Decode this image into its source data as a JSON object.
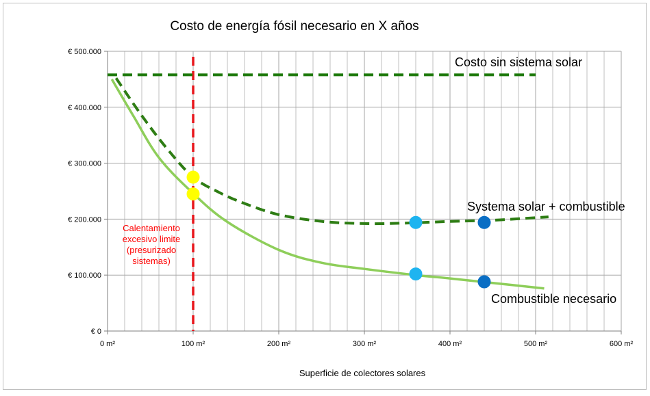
{
  "chart_data": {
    "type": "line",
    "title": "Costo de energía fósil necesario en X años",
    "xlabel": "Superficie de colectores solares",
    "ylabel": "",
    "xlim": [
      0,
      600
    ],
    "ylim": [
      0,
      500000
    ],
    "x_ticks": [
      {
        "value": 0,
        "label": "0 m²"
      },
      {
        "value": 100,
        "label": "100 m²"
      },
      {
        "value": 200,
        "label": "200 m²"
      },
      {
        "value": 300,
        "label": "300 m²"
      },
      {
        "value": 400,
        "label": "400 m²"
      },
      {
        "value": 500,
        "label": "500 m²"
      },
      {
        "value": 600,
        "label": "600 m²"
      }
    ],
    "y_ticks": [
      {
        "value": 0,
        "label": "€ 0"
      },
      {
        "value": 100000,
        "label": "€ 100.000"
      },
      {
        "value": 200000,
        "label": "€ 200.000"
      },
      {
        "value": 300000,
        "label": "€ 300.000"
      },
      {
        "value": 400000,
        "label": "€ 400.000"
      },
      {
        "value": 500000,
        "label": "€ 500.000"
      }
    ],
    "grid": true,
    "grid_minor_x_step": 20,
    "series": [
      {
        "name": "Costo sin sistema solar",
        "style": "dashed",
        "color": "#1e7a0c",
        "x": [
          0,
          500
        ],
        "y": [
          458000,
          458000
        ]
      },
      {
        "name": "Systema solar + combustible",
        "style": "dashed",
        "color": "#2e7d14",
        "x": [
          10,
          40,
          70,
          100,
          130,
          160,
          200,
          250,
          300,
          350,
          400,
          450,
          515
        ],
        "y": [
          452000,
          385000,
          325000,
          275000,
          248000,
          228000,
          208000,
          196000,
          192000,
          193000,
          196000,
          198000,
          204000
        ]
      },
      {
        "name": "Combustible necesario",
        "style": "solid",
        "color": "#8ece5a",
        "x": [
          5,
          30,
          60,
          100,
          140,
          200,
          250,
          300,
          360,
          400,
          450,
          510
        ],
        "y": [
          450000,
          385000,
          310000,
          246000,
          195000,
          145000,
          122000,
          111000,
          100000,
          94000,
          86000,
          76000
        ]
      }
    ],
    "markers": [
      {
        "x": 100,
        "y": 275000,
        "color": "#ffff00"
      },
      {
        "x": 100,
        "y": 245000,
        "color": "#ffff00"
      },
      {
        "x": 360,
        "y": 194000,
        "color": "#1eb4f0"
      },
      {
        "x": 360,
        "y": 102000,
        "color": "#1eb4f0"
      },
      {
        "x": 440,
        "y": 194000,
        "color": "#0a6ec4"
      },
      {
        "x": 440,
        "y": 88000,
        "color": "#0a6ec4"
      }
    ],
    "limit_line": {
      "x": 100,
      "color": "#e8161c",
      "label": [
        "Calentamiento",
        "excesivo limite",
        "(presurizado",
        "sistemas)"
      ]
    }
  }
}
